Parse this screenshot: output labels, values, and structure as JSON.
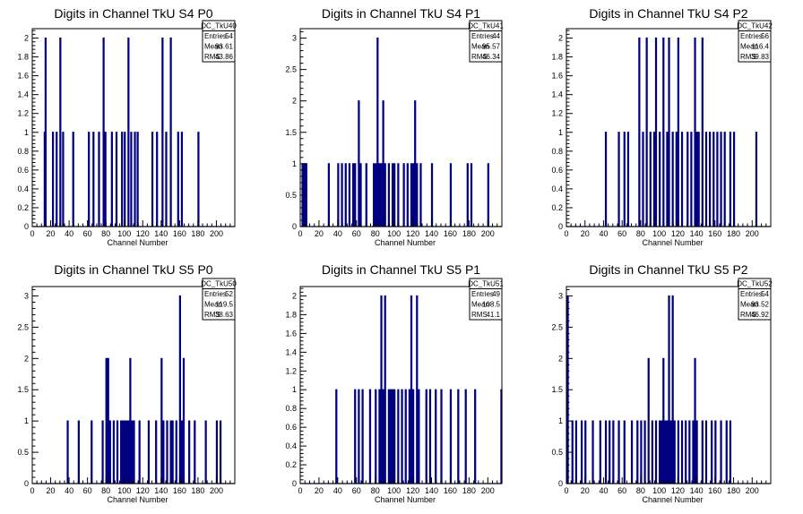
{
  "colors": {
    "hist": "#000080",
    "axis": "#000000",
    "background": "#ffffff"
  },
  "chart_data": [
    {
      "type": "bar",
      "title": "Digits in Channel TkU S4 P0",
      "xlabel": "Channel Number",
      "xlim": [
        0,
        220
      ],
      "ylim": [
        0,
        2.1
      ],
      "yticks": [
        0,
        0.2,
        0.4,
        0.6,
        0.8,
        1,
        1.2,
        1.4,
        1.6,
        1.8,
        2
      ],
      "ytick_labels": [
        "0",
        "0.2",
        "0.4",
        "0.6",
        "0.8",
        "1",
        "1.2",
        "1.4",
        "1.6",
        "1.8",
        "2"
      ],
      "xticks": [
        0,
        20,
        40,
        60,
        80,
        100,
        120,
        140,
        160,
        180,
        200
      ],
      "stats": {
        "name": "DC_TkU40",
        "entries": "54",
        "mean": "93.61",
        "rms": "43.86"
      },
      "bins": [
        [
          13,
          1
        ],
        [
          14,
          2
        ],
        [
          22,
          1
        ],
        [
          26,
          1
        ],
        [
          30,
          2
        ],
        [
          33,
          1
        ],
        [
          44,
          1
        ],
        [
          61,
          1
        ],
        [
          66,
          1
        ],
        [
          72,
          1
        ],
        [
          77,
          2
        ],
        [
          79,
          1
        ],
        [
          86,
          1
        ],
        [
          91,
          1
        ],
        [
          97,
          1
        ],
        [
          100,
          1
        ],
        [
          104,
          2
        ],
        [
          107,
          1
        ],
        [
          111,
          1
        ],
        [
          114,
          1
        ],
        [
          130,
          1
        ],
        [
          135,
          1
        ],
        [
          141,
          2
        ],
        [
          145,
          1
        ],
        [
          150,
          2
        ],
        [
          158,
          1
        ],
        [
          162,
          1
        ],
        [
          180,
          1
        ]
      ]
    },
    {
      "type": "bar",
      "title": "Digits in Channel TkU S4 P1",
      "xlabel": "Channel Number",
      "xlim": [
        0,
        215
      ],
      "ylim": [
        0,
        3.15
      ],
      "yticks": [
        0,
        0.5,
        1,
        1.5,
        2,
        2.5,
        3
      ],
      "ytick_labels": [
        "0",
        "0.5",
        "1",
        "1.5",
        "2",
        "2.5",
        "3"
      ],
      "xticks": [
        0,
        20,
        40,
        60,
        80,
        100,
        120,
        140,
        160,
        180,
        200
      ],
      "stats": {
        "name": "DC_TkU41",
        "entries": "44",
        "mean": "95.57",
        "rms": "46.34"
      },
      "bins": [
        [
          2,
          1
        ],
        [
          4,
          1
        ],
        [
          6,
          1
        ],
        [
          30,
          1
        ],
        [
          40,
          1
        ],
        [
          44,
          1
        ],
        [
          48,
          1
        ],
        [
          52,
          1
        ],
        [
          56,
          1
        ],
        [
          58,
          1
        ],
        [
          62,
          2
        ],
        [
          64,
          1
        ],
        [
          70,
          1
        ],
        [
          78,
          1
        ],
        [
          80,
          1
        ],
        [
          82,
          3
        ],
        [
          84,
          1
        ],
        [
          86,
          1
        ],
        [
          88,
          2
        ],
        [
          90,
          1
        ],
        [
          94,
          1
        ],
        [
          98,
          1
        ],
        [
          100,
          1
        ],
        [
          104,
          1
        ],
        [
          110,
          1
        ],
        [
          114,
          1
        ],
        [
          118,
          1
        ],
        [
          120,
          1
        ],
        [
          122,
          2
        ],
        [
          124,
          1
        ],
        [
          128,
          1
        ],
        [
          140,
          1
        ],
        [
          160,
          1
        ],
        [
          178,
          1
        ],
        [
          182,
          1
        ],
        [
          200,
          1
        ]
      ]
    },
    {
      "type": "bar",
      "title": "Digits in Channel TkU S4 P2",
      "xlabel": "Channel Number",
      "xlim": [
        0,
        220
      ],
      "ylim": [
        0,
        2.1
      ],
      "yticks": [
        0,
        0.2,
        0.4,
        0.6,
        0.8,
        1,
        1.2,
        1.4,
        1.6,
        1.8,
        2
      ],
      "ytick_labels": [
        "0",
        "0.2",
        "0.4",
        "0.6",
        "0.8",
        "1",
        "1.2",
        "1.4",
        "1.6",
        "1.8",
        "2"
      ],
      "xticks": [
        0,
        20,
        40,
        60,
        80,
        100,
        120,
        140,
        160,
        180,
        200
      ],
      "stats": {
        "name": "DC_TkU42",
        "entries": "56",
        "mean": "116.4",
        "rms": "39.83"
      },
      "bins": [
        [
          42,
          1
        ],
        [
          56,
          1
        ],
        [
          62,
          1
        ],
        [
          66,
          1
        ],
        [
          78,
          2
        ],
        [
          82,
          1
        ],
        [
          86,
          2
        ],
        [
          90,
          1
        ],
        [
          94,
          1
        ],
        [
          96,
          2
        ],
        [
          100,
          1
        ],
        [
          104,
          2
        ],
        [
          108,
          1
        ],
        [
          110,
          2
        ],
        [
          114,
          1
        ],
        [
          118,
          1
        ],
        [
          120,
          2
        ],
        [
          124,
          1
        ],
        [
          130,
          1
        ],
        [
          134,
          1
        ],
        [
          138,
          2
        ],
        [
          140,
          1
        ],
        [
          142,
          1
        ],
        [
          146,
          2
        ],
        [
          150,
          1
        ],
        [
          154,
          1
        ],
        [
          158,
          1
        ],
        [
          162,
          1
        ],
        [
          166,
          1
        ],
        [
          170,
          1
        ],
        [
          176,
          1
        ],
        [
          180,
          1
        ],
        [
          204,
          1
        ]
      ]
    },
    {
      "type": "bar",
      "title": "Digits in Channel TkU S5 P0",
      "xlabel": "Channel Number",
      "xlim": [
        0,
        220
      ],
      "ylim": [
        0,
        3.15
      ],
      "yticks": [
        0,
        0.5,
        1,
        1.5,
        2,
        2.5,
        3
      ],
      "ytick_labels": [
        "0",
        "0.5",
        "1",
        "1.5",
        "2",
        "2.5",
        "3"
      ],
      "xticks": [
        0,
        20,
        40,
        60,
        80,
        100,
        120,
        140,
        160,
        180,
        200
      ],
      "stats": {
        "name": "DC_TkU50",
        "entries": "52",
        "mean": "119.5",
        "rms": "38.63"
      },
      "bins": [
        [
          38,
          1
        ],
        [
          50,
          1
        ],
        [
          64,
          1
        ],
        [
          76,
          1
        ],
        [
          80,
          2
        ],
        [
          82,
          2
        ],
        [
          84,
          1
        ],
        [
          88,
          1
        ],
        [
          92,
          1
        ],
        [
          96,
          1
        ],
        [
          98,
          1
        ],
        [
          100,
          1
        ],
        [
          102,
          1
        ],
        [
          104,
          1
        ],
        [
          106,
          2
        ],
        [
          108,
          1
        ],
        [
          110,
          1
        ],
        [
          116,
          1
        ],
        [
          126,
          1
        ],
        [
          134,
          1
        ],
        [
          140,
          2
        ],
        [
          142,
          1
        ],
        [
          146,
          1
        ],
        [
          150,
          1
        ],
        [
          152,
          1
        ],
        [
          156,
          1
        ],
        [
          160,
          3
        ],
        [
          162,
          1
        ],
        [
          164,
          2
        ],
        [
          170,
          1
        ],
        [
          176,
          1
        ],
        [
          188,
          1
        ],
        [
          200,
          1
        ],
        [
          204,
          1
        ]
      ]
    },
    {
      "type": "bar",
      "title": "Digits in Channel TkU S5 P1",
      "xlabel": "Channel Number",
      "xlim": [
        0,
        215
      ],
      "ylim": [
        0,
        2.1
      ],
      "yticks": [
        0,
        0.2,
        0.4,
        0.6,
        0.8,
        1,
        1.2,
        1.4,
        1.6,
        1.8,
        2
      ],
      "ytick_labels": [
        "0",
        "0.2",
        "0.4",
        "0.6",
        "0.8",
        "1",
        "1.2",
        "1.4",
        "1.6",
        "1.8",
        "2"
      ],
      "xticks": [
        0,
        20,
        40,
        60,
        80,
        100,
        120,
        140,
        160,
        180,
        200
      ],
      "stats": {
        "name": "DC_TkU51",
        "entries": "49",
        "mean": "108.5",
        "rms": "41.1"
      },
      "bins": [
        [
          38,
          1
        ],
        [
          58,
          1
        ],
        [
          62,
          1
        ],
        [
          66,
          1
        ],
        [
          74,
          1
        ],
        [
          80,
          1
        ],
        [
          84,
          1
        ],
        [
          86,
          2
        ],
        [
          88,
          1
        ],
        [
          90,
          2
        ],
        [
          94,
          1
        ],
        [
          96,
          1
        ],
        [
          98,
          1
        ],
        [
          100,
          1
        ],
        [
          104,
          1
        ],
        [
          108,
          1
        ],
        [
          112,
          1
        ],
        [
          116,
          1
        ],
        [
          118,
          2
        ],
        [
          120,
          1
        ],
        [
          124,
          2
        ],
        [
          126,
          1
        ],
        [
          134,
          1
        ],
        [
          138,
          1
        ],
        [
          144,
          1
        ],
        [
          150,
          1
        ],
        [
          160,
          1
        ],
        [
          168,
          1
        ],
        [
          176,
          1
        ],
        [
          186,
          1
        ],
        [
          214,
          1
        ]
      ]
    },
    {
      "type": "bar",
      "title": "Digits in Channel TkU S5 P2",
      "xlabel": "Channel Number",
      "xlim": [
        0,
        220
      ],
      "ylim": [
        0,
        3.15
      ],
      "yticks": [
        0,
        0.5,
        1,
        1.5,
        2,
        2.5,
        3
      ],
      "ytick_labels": [
        "0",
        "0.5",
        "1",
        "1.5",
        "2",
        "2.5",
        "3"
      ],
      "xticks": [
        0,
        20,
        40,
        60,
        80,
        100,
        120,
        140,
        160,
        180,
        200
      ],
      "stats": {
        "name": "DC_TkU52",
        "entries": "54",
        "mean": "93.52",
        "rms": "46.92"
      },
      "bins": [
        [
          1,
          3
        ],
        [
          6,
          1
        ],
        [
          10,
          1
        ],
        [
          16,
          1
        ],
        [
          20,
          1
        ],
        [
          28,
          1
        ],
        [
          36,
          1
        ],
        [
          42,
          1
        ],
        [
          46,
          1
        ],
        [
          50,
          1
        ],
        [
          56,
          1
        ],
        [
          62,
          1
        ],
        [
          70,
          1
        ],
        [
          76,
          1
        ],
        [
          80,
          1
        ],
        [
          84,
          1
        ],
        [
          88,
          2
        ],
        [
          92,
          1
        ],
        [
          96,
          1
        ],
        [
          100,
          1
        ],
        [
          102,
          1
        ],
        [
          104,
          2
        ],
        [
          106,
          1
        ],
        [
          108,
          1
        ],
        [
          110,
          3
        ],
        [
          112,
          1
        ],
        [
          114,
          3
        ],
        [
          116,
          1
        ],
        [
          120,
          1
        ],
        [
          124,
          1
        ],
        [
          128,
          1
        ],
        [
          132,
          1
        ],
        [
          136,
          1
        ],
        [
          138,
          2
        ],
        [
          140,
          1
        ],
        [
          146,
          1
        ],
        [
          150,
          1
        ],
        [
          156,
          1
        ],
        [
          160,
          1
        ],
        [
          166,
          1
        ],
        [
          172,
          1
        ],
        [
          176,
          1
        ]
      ]
    }
  ]
}
